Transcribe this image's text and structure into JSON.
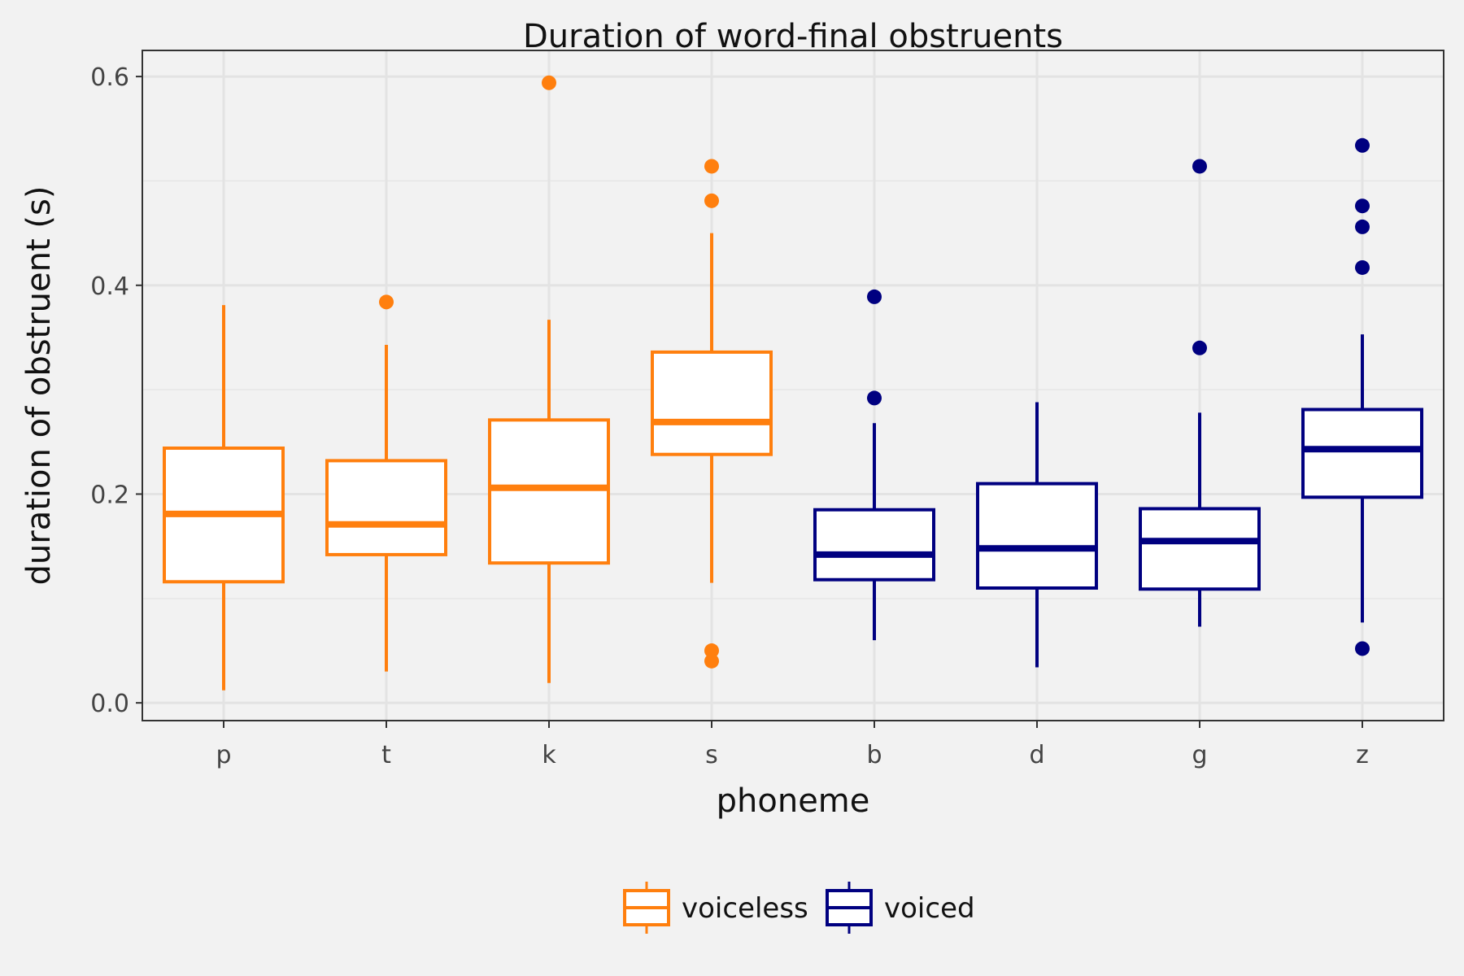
{
  "chart_data": {
    "type": "box",
    "title": "Duration of word-final obstruents",
    "xlabel": "phoneme",
    "ylabel": "duration of obstruent (s)",
    "categories": [
      "p",
      "t",
      "k",
      "s",
      "b",
      "d",
      "g",
      "z"
    ],
    "ylim": [
      -0.017,
      0.625
    ],
    "yticks": [
      0.0,
      0.2,
      0.4,
      0.6
    ],
    "ytick_labels": [
      "0.0",
      "0.2",
      "0.4",
      "0.6"
    ],
    "grid": true,
    "legend_position": "bottom",
    "series": [
      {
        "name": "voiceless",
        "color": "#ff7f0e",
        "boxes": [
          {
            "category": "p",
            "whisker_low": 0.012,
            "q1": 0.116,
            "median": 0.181,
            "q3": 0.244,
            "whisker_high": 0.381,
            "outliers": []
          },
          {
            "category": "t",
            "whisker_low": 0.03,
            "q1": 0.142,
            "median": 0.171,
            "q3": 0.232,
            "whisker_high": 0.343,
            "outliers": [
              0.384
            ]
          },
          {
            "category": "k",
            "whisker_low": 0.019,
            "q1": 0.134,
            "median": 0.206,
            "q3": 0.271,
            "whisker_high": 0.367,
            "outliers": [
              0.594
            ]
          },
          {
            "category": "s",
            "whisker_low": 0.115,
            "q1": 0.238,
            "median": 0.269,
            "q3": 0.336,
            "whisker_high": 0.45,
            "outliers": [
              0.514,
              0.481,
              0.05,
              0.04
            ]
          }
        ]
      },
      {
        "name": "voiced",
        "color": "#000080",
        "boxes": [
          {
            "category": "b",
            "whisker_low": 0.06,
            "q1": 0.118,
            "median": 0.142,
            "q3": 0.185,
            "whisker_high": 0.268,
            "outliers": [
              0.389,
              0.292
            ]
          },
          {
            "category": "d",
            "whisker_low": 0.034,
            "q1": 0.11,
            "median": 0.148,
            "q3": 0.21,
            "whisker_high": 0.288,
            "outliers": []
          },
          {
            "category": "g",
            "whisker_low": 0.073,
            "q1": 0.109,
            "median": 0.155,
            "q3": 0.186,
            "whisker_high": 0.278,
            "outliers": [
              0.514,
              0.34
            ]
          },
          {
            "category": "z",
            "whisker_low": 0.077,
            "q1": 0.197,
            "median": 0.243,
            "q3": 0.281,
            "whisker_high": 0.353,
            "outliers": [
              0.534,
              0.476,
              0.456,
              0.417,
              0.052
            ]
          }
        ]
      }
    ]
  }
}
